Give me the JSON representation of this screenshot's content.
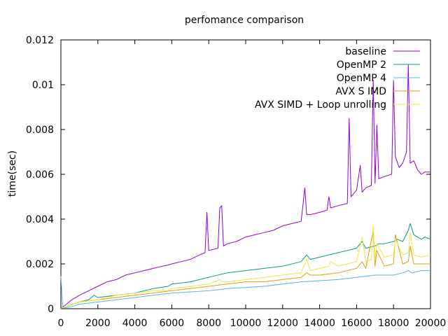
{
  "chart_data": {
    "type": "line",
    "title": "perfomance comparison",
    "xlabel": "",
    "ylabel": "time(sec)",
    "xlim": [
      0,
      20000
    ],
    "ylim": [
      0,
      0.012
    ],
    "x_ticks": [
      0,
      2000,
      4000,
      6000,
      8000,
      10000,
      12000,
      14000,
      16000,
      18000,
      20000
    ],
    "x_tick_labels": [
      "0",
      "2000",
      "4000",
      "6000",
      "8000",
      "10000",
      "12000",
      "14000",
      "16000",
      "18000",
      "20000"
    ],
    "y_ticks": [
      0,
      0.002,
      0.004,
      0.006,
      0.008,
      0.01,
      0.012
    ],
    "y_tick_labels": [
      "0",
      "0.002",
      "0.004",
      "0.006",
      "0.008",
      "0.01",
      "0.012"
    ],
    "grid": false,
    "legend_position": "top-right",
    "series": [
      {
        "name": "baseline",
        "color": "#9400d3",
        "x": [
          0,
          300,
          600,
          1000,
          1500,
          2000,
          2500,
          3000,
          3500,
          4000,
          4500,
          5000,
          5500,
          5800,
          6000,
          6500,
          7000,
          7500,
          7800,
          7900,
          8000,
          8500,
          8600,
          8700,
          8800,
          9000,
          9500,
          10000,
          10500,
          11000,
          11500,
          12000,
          12500,
          13000,
          13200,
          13300,
          13500,
          14000,
          14400,
          14500,
          14600,
          15000,
          15500,
          15600,
          15700,
          16000,
          16200,
          16300,
          16500,
          16800,
          16900,
          17000,
          17100,
          17200,
          17500,
          17900,
          18000,
          18100,
          18300,
          18500,
          18700,
          18800,
          18900,
          19100,
          19300,
          19500,
          19700,
          20000
        ],
        "y": [
          2e-05,
          0.0002,
          0.0004,
          0.0006,
          0.0008,
          0.001,
          0.0012,
          0.0013,
          0.0015,
          0.0016,
          0.0017,
          0.0018,
          0.0019,
          0.00195,
          0.002,
          0.0021,
          0.0022,
          0.0024,
          0.0025,
          0.0043,
          0.0026,
          0.0027,
          0.0045,
          0.0046,
          0.0028,
          0.0029,
          0.003,
          0.0032,
          0.0033,
          0.0034,
          0.0035,
          0.0037,
          0.0038,
          0.0039,
          0.0054,
          0.0042,
          0.0042,
          0.0043,
          0.0044,
          0.005,
          0.0045,
          0.0046,
          0.0047,
          0.0085,
          0.005,
          0.0053,
          0.0064,
          0.0052,
          0.0054,
          0.0055,
          0.0102,
          0.0056,
          0.0082,
          0.0058,
          0.0059,
          0.006,
          0.0102,
          0.0068,
          0.0063,
          0.0065,
          0.007,
          0.0109,
          0.0065,
          0.0066,
          0.0062,
          0.006,
          0.0061,
          0.0061
        ]
      },
      {
        "name": "OpenMP 2",
        "color": "#009e73",
        "x": [
          0,
          300,
          600,
          1000,
          1500,
          1800,
          2000,
          3000,
          4000,
          5000,
          5800,
          6000,
          7000,
          8000,
          9000,
          10000,
          11000,
          12000,
          13000,
          13300,
          13500,
          14000,
          14500,
          15000,
          15500,
          16000,
          16300,
          16500,
          17000,
          17200,
          17500,
          18000,
          18200,
          18500,
          18800,
          18900,
          19100,
          19500,
          19700,
          20000
        ],
        "y": [
          2e-05,
          0.0001,
          0.0002,
          0.0003,
          0.0004,
          0.0006,
          0.0005,
          0.0006,
          0.0007,
          0.0009,
          0.001,
          0.0011,
          0.0012,
          0.0014,
          0.0016,
          0.0017,
          0.0018,
          0.0019,
          0.0021,
          0.0024,
          0.0022,
          0.0023,
          0.0024,
          0.0025,
          0.0026,
          0.0027,
          0.003,
          0.0027,
          0.0028,
          0.0029,
          0.0029,
          0.003,
          0.0031,
          0.003,
          0.0035,
          0.0038,
          0.0033,
          0.0031,
          0.0032,
          0.0031
        ]
      },
      {
        "name": "OpenMP 4",
        "color": "#56b4e9",
        "x": [
          0,
          100,
          300,
          600,
          1000,
          2000,
          3000,
          4000,
          5000,
          6000,
          7000,
          8000,
          9000,
          10000,
          11000,
          12000,
          13000,
          14000,
          15000,
          16000,
          17000,
          18000,
          18500,
          18800,
          19000,
          19500,
          20000
        ],
        "y": [
          0.00145,
          5e-05,
          5e-05,
          0.0001,
          0.0002,
          0.0003,
          0.0004,
          0.0005,
          0.0006,
          0.0007,
          0.00075,
          0.0008,
          0.0009,
          0.00095,
          0.001,
          0.0011,
          0.0012,
          0.00125,
          0.0013,
          0.0014,
          0.0015,
          0.0015,
          0.0016,
          0.0017,
          0.0016,
          0.0017,
          0.0017
        ]
      },
      {
        "name": "AVX S IMD",
        "color": "#e69f00",
        "x": [
          0,
          300,
          600,
          1000,
          2000,
          3000,
          4000,
          5000,
          6000,
          7000,
          8000,
          9000,
          10000,
          11000,
          12000,
          13000,
          13300,
          13500,
          14000,
          15000,
          15500,
          16000,
          16300,
          16500,
          16900,
          17000,
          17100,
          17500,
          18000,
          18100,
          18500,
          18800,
          18900,
          19100,
          19500,
          20000
        ],
        "y": [
          2e-05,
          0.0001,
          0.0002,
          0.0003,
          0.0004,
          0.0005,
          0.0006,
          0.0007,
          0.0008,
          0.0009,
          0.001,
          0.0011,
          0.0012,
          0.0012,
          0.0013,
          0.0014,
          0.0016,
          0.0015,
          0.0015,
          0.0016,
          0.0017,
          0.0018,
          0.0021,
          0.0018,
          0.0035,
          0.0019,
          0.0026,
          0.0019,
          0.002,
          0.0033,
          0.002,
          0.0021,
          0.0028,
          0.002,
          0.002,
          0.002
        ]
      },
      {
        "name": "AVX SIMD + Loop unrolling",
        "color": "#f0e442",
        "x": [
          0,
          300,
          600,
          1000,
          2000,
          3000,
          4000,
          5000,
          5800,
          6000,
          7000,
          8000,
          8600,
          8700,
          9000,
          10000,
          11000,
          12000,
          13000,
          13300,
          13500,
          14000,
          14500,
          14600,
          15000,
          15500,
          16000,
          16300,
          16500,
          16800,
          16900,
          17000,
          17100,
          17500,
          18000,
          18100,
          18500,
          18800,
          18900,
          19100,
          19500,
          20000
        ],
        "y": [
          2e-05,
          0.0001,
          0.0002,
          0.0003,
          0.0004,
          0.0006,
          0.0007,
          0.0008,
          0.0008,
          0.0009,
          0.001,
          0.0011,
          0.0013,
          0.0012,
          0.0012,
          0.0013,
          0.0014,
          0.0015,
          0.0016,
          0.0022,
          0.0017,
          0.0018,
          0.0019,
          0.0021,
          0.0019,
          0.002,
          0.0021,
          0.0032,
          0.0021,
          0.0022,
          0.0037,
          0.0022,
          0.0029,
          0.0023,
          0.0024,
          0.0031,
          0.0024,
          0.0025,
          0.0034,
          0.0024,
          0.0023,
          0.0024
        ]
      }
    ]
  }
}
